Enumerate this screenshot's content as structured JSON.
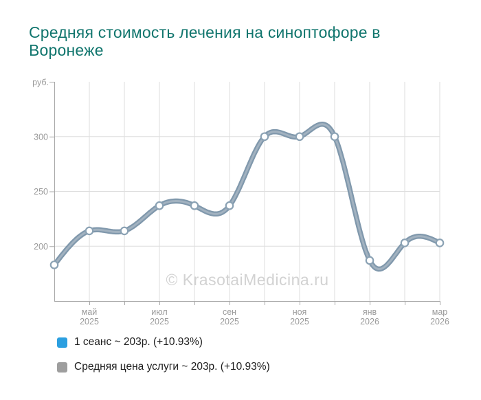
{
  "title": "Средняя стоимость лечения на синоптофоре в Воронеже",
  "watermark": "© KrasotaiMedicina.ru",
  "legend": [
    {
      "label": "1 сеанс ~ 203р. (+10.93%)",
      "color": "#2b9fe0",
      "series_name": "1 сеанс",
      "current_value": "203р.",
      "change": "+10.93%"
    },
    {
      "label": "Средняя цена услуги ~ 203р. (+10.93%)",
      "color": "#9e9e9e",
      "series_name": "Средняя цена услуги",
      "current_value": "203р.",
      "change": "+10.93%"
    }
  ],
  "chart_data": {
    "type": "line",
    "title": "Средняя стоимость лечения на синоптофоре в Воронеже",
    "y_unit": "руб.",
    "y_ticks": [
      200,
      250,
      300
    ],
    "ylim": [
      150,
      350
    ],
    "grid": true,
    "n_points": 12,
    "values": [
      183,
      214,
      214,
      237,
      237,
      237,
      300,
      300,
      300,
      187,
      203,
      203
    ],
    "x_tick_labels": [
      {
        "point_index": 1,
        "month": "май",
        "year": "2025"
      },
      {
        "point_index": 3,
        "month": "июл",
        "year": "2025"
      },
      {
        "point_index": 5,
        "month": "сен",
        "year": "2025"
      },
      {
        "point_index": 7,
        "month": "ноя",
        "year": "2025"
      },
      {
        "point_index": 9,
        "month": "янв",
        "year": "2026"
      },
      {
        "point_index": 11,
        "month": "мар",
        "year": "2026"
      }
    ],
    "series": [
      {
        "name": "1 сеанс",
        "color": "#2b9fe0"
      },
      {
        "name": "Средняя цена услуги",
        "color": "#9e9e9e"
      }
    ],
    "line_color": "#8ba2b4",
    "marker": "white-circle",
    "legend_position": "bottom"
  },
  "colors": {
    "title": "#10756d",
    "axis": "#a8a8a8",
    "grid": "#dedede",
    "axis_text": "#9a9a9a",
    "line_outer": "#8098ac",
    "line_inner": "#a2b2c0",
    "marker_stroke": "#8ba2b4",
    "watermark": "#d2d2d2"
  }
}
